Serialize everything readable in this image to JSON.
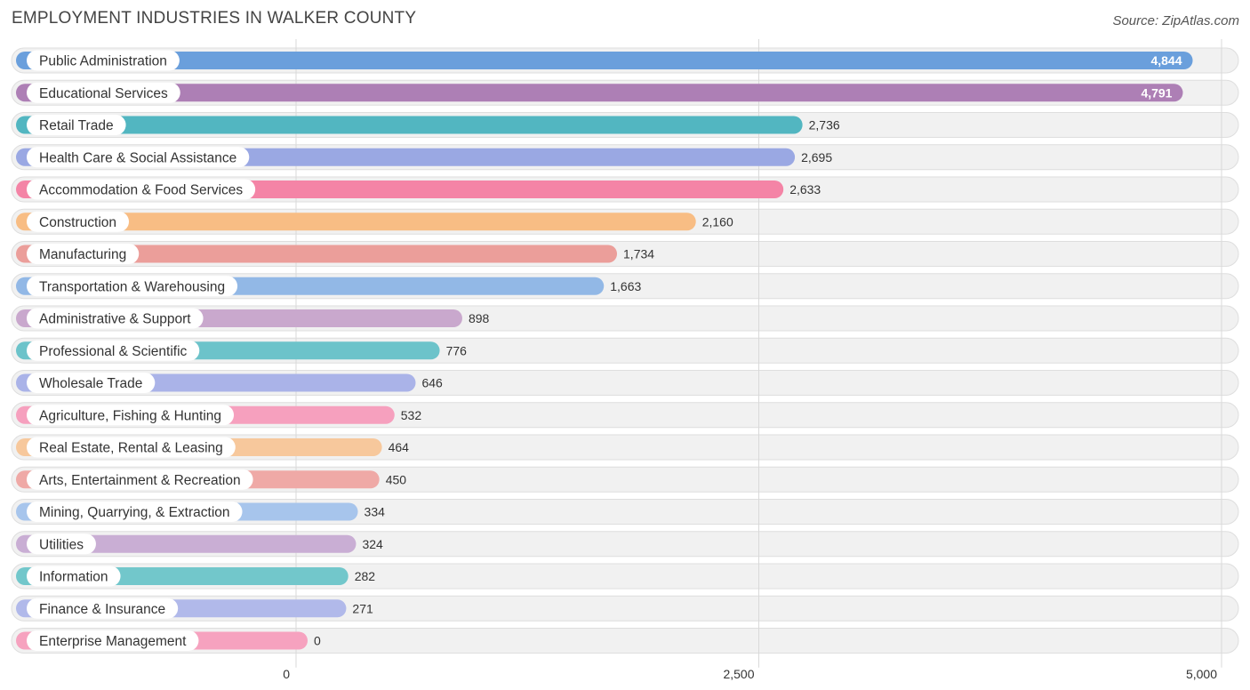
{
  "header": {
    "title": "EMPLOYMENT INDUSTRIES IN WALKER COUNTY",
    "source": "Source: ZipAtlas.com"
  },
  "chart_data": {
    "type": "bar",
    "orientation": "horizontal",
    "title": "EMPLOYMENT INDUSTRIES IN WALKER COUNTY",
    "xlabel": "",
    "ylabel": "",
    "xlim": [
      0,
      5000
    ],
    "ticks": [
      {
        "value": 0,
        "label": "0"
      },
      {
        "value": 2500,
        "label": "2,500"
      },
      {
        "value": 5000,
        "label": "5,000"
      }
    ],
    "grid": true,
    "categories": [
      "Public Administration",
      "Educational Services",
      "Retail Trade",
      "Health Care & Social Assistance",
      "Accommodation & Food Services",
      "Construction",
      "Manufacturing",
      "Transportation & Warehousing",
      "Administrative & Support",
      "Professional & Scientific",
      "Wholesale Trade",
      "Agriculture, Fishing & Hunting",
      "Real Estate, Rental & Leasing",
      "Arts, Entertainment & Recreation",
      "Mining, Quarrying, & Extraction",
      "Utilities",
      "Information",
      "Finance & Insurance",
      "Enterprise Management"
    ],
    "values": [
      4844,
      4791,
      2736,
      2695,
      2633,
      2160,
      1734,
      1663,
      898,
      776,
      646,
      532,
      464,
      450,
      334,
      324,
      282,
      271,
      0
    ],
    "value_labels": [
      "4,844",
      "4,791",
      "2,736",
      "2,695",
      "2,633",
      "2,160",
      "1,734",
      "1,663",
      "898",
      "776",
      "646",
      "532",
      "464",
      "450",
      "334",
      "324",
      "282",
      "271",
      "0"
    ],
    "colors": [
      "#6a9fdc",
      "#ad7fb5",
      "#52b6c1",
      "#9aa8e3",
      "#f484a6",
      "#f8bd84",
      "#eb9e9a",
      "#92b8e6",
      "#c9a8cd",
      "#6cc3ca",
      "#aab3e8",
      "#f6a0be",
      "#f7c89c",
      "#efa9a6",
      "#a7c5ec",
      "#c9aed4",
      "#72c7cb",
      "#b1b9ea",
      "#f6a2bf"
    ]
  }
}
